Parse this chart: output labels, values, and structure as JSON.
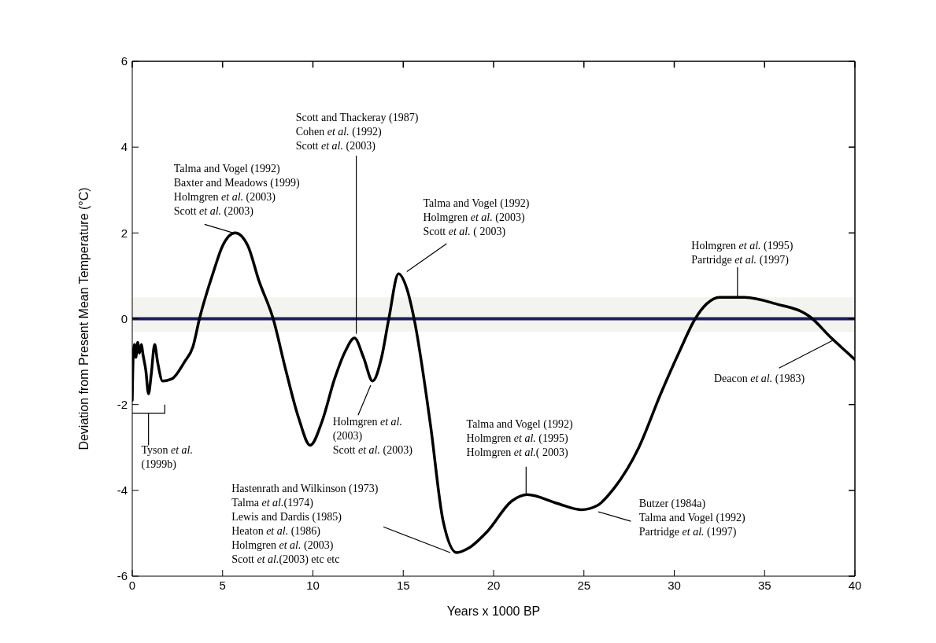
{
  "chart_data": {
    "type": "line",
    "xlabel": "Years x 1000 BP",
    "ylabel": "Deviation from Present Mean Temperature (°C)",
    "xlim": [
      0,
      40
    ],
    "xticks": [
      0,
      5,
      10,
      15,
      20,
      25,
      30,
      35,
      40
    ],
    "ylim": [
      -6,
      6
    ],
    "yticks": [
      -6,
      -4,
      -2,
      0,
      2,
      4,
      6
    ],
    "x": [
      0,
      0.05,
      0.12,
      0.2,
      0.3,
      0.4,
      0.5,
      0.6,
      0.75,
      0.9,
      1.05,
      1.24,
      1.4,
      1.68,
      2.2,
      2.9,
      3.36,
      3.72,
      4.5,
      5.0,
      5.7,
      6.4,
      7.0,
      7.8,
      8.5,
      9.2,
      9.85,
      10.5,
      11.2,
      11.8,
      12.3,
      12.8,
      13.3,
      13.8,
      14.2,
      14.74,
      15.2,
      15.6,
      16.5,
      17.2,
      17.96,
      18.6,
      19.67,
      21.0,
      21.87,
      23.5,
      24.84,
      25.75,
      26.67,
      28.04,
      29.25,
      30.3,
      31.16,
      31.8,
      32.5,
      33.9,
      35.6,
      37.5,
      38.7,
      40
    ],
    "series": [
      {
        "color": "#000000",
        "values": [
          -1.9,
          -0.9,
          -0.6,
          -0.9,
          -0.55,
          -0.8,
          -0.6,
          -0.85,
          -1.2,
          -1.75,
          -1.3,
          -0.6,
          -1.0,
          -1.45,
          -1.4,
          -1.0,
          -0.65,
          0,
          1.1,
          1.7,
          2.0,
          1.7,
          0.9,
          0,
          -1.2,
          -2.3,
          -2.95,
          -2.4,
          -1.4,
          -0.75,
          -0.45,
          -0.9,
          -1.45,
          -0.9,
          0,
          1.05,
          0.7,
          0,
          -2.45,
          -4.7,
          -5.45,
          -5.35,
          -4.95,
          -4.25,
          -4.1,
          -4.3,
          -4.45,
          -4.35,
          -3.95,
          -3.0,
          -1.75,
          -0.75,
          0,
          0.35,
          0.5,
          0.5,
          0.35,
          0.05,
          -0.45,
          -0.95
        ]
      }
    ],
    "line_style": "solid",
    "ref_lines": [
      {
        "axis": "y",
        "value": 0,
        "color": "#1a1f5e"
      }
    ],
    "bands": [
      {
        "axis": "y",
        "from": -0.3,
        "to": 0.5,
        "color": "#f3f3ef"
      }
    ],
    "annotations": [
      "Tyson et al.\n(1999b)",
      "Talma and Vogel (1992)\nBaxter and Meadows (1999)\nHolmgren et al. (2003)\nScott et al. (2003)",
      "Scott and Thackeray (1987)\nCohen et al. (1992)\nScott et al. (2003)",
      "Talma and Vogel (1992)\nHolmgren et al. (2003)\nScott et al. ( 2003)",
      "Holmgren et al.\n(2003)\nScott et al. (2003)",
      "Hastenrath and Wilkinson (1973)\nTalma et al.(1974)\nLewis and Dardis (1985)\nHeaton et al. (1986)\nHolmgren et al. (2003)\nScott et al.(2003) etc etc",
      "Talma and Vogel (1992)\nHolmgren et al. (1995)\nHolmgren et al.( 2003)",
      "Butzer (1984a)\nTalma and Vogel (1992)\nPartridge et al. (1997)",
      "Holmgren et al. (1995)\nPartridge et al. (1997)",
      {
        "text": "Deacon et al. (1983)",
        "x": 38.8,
        "y": -0.5
      }
    ]
  }
}
